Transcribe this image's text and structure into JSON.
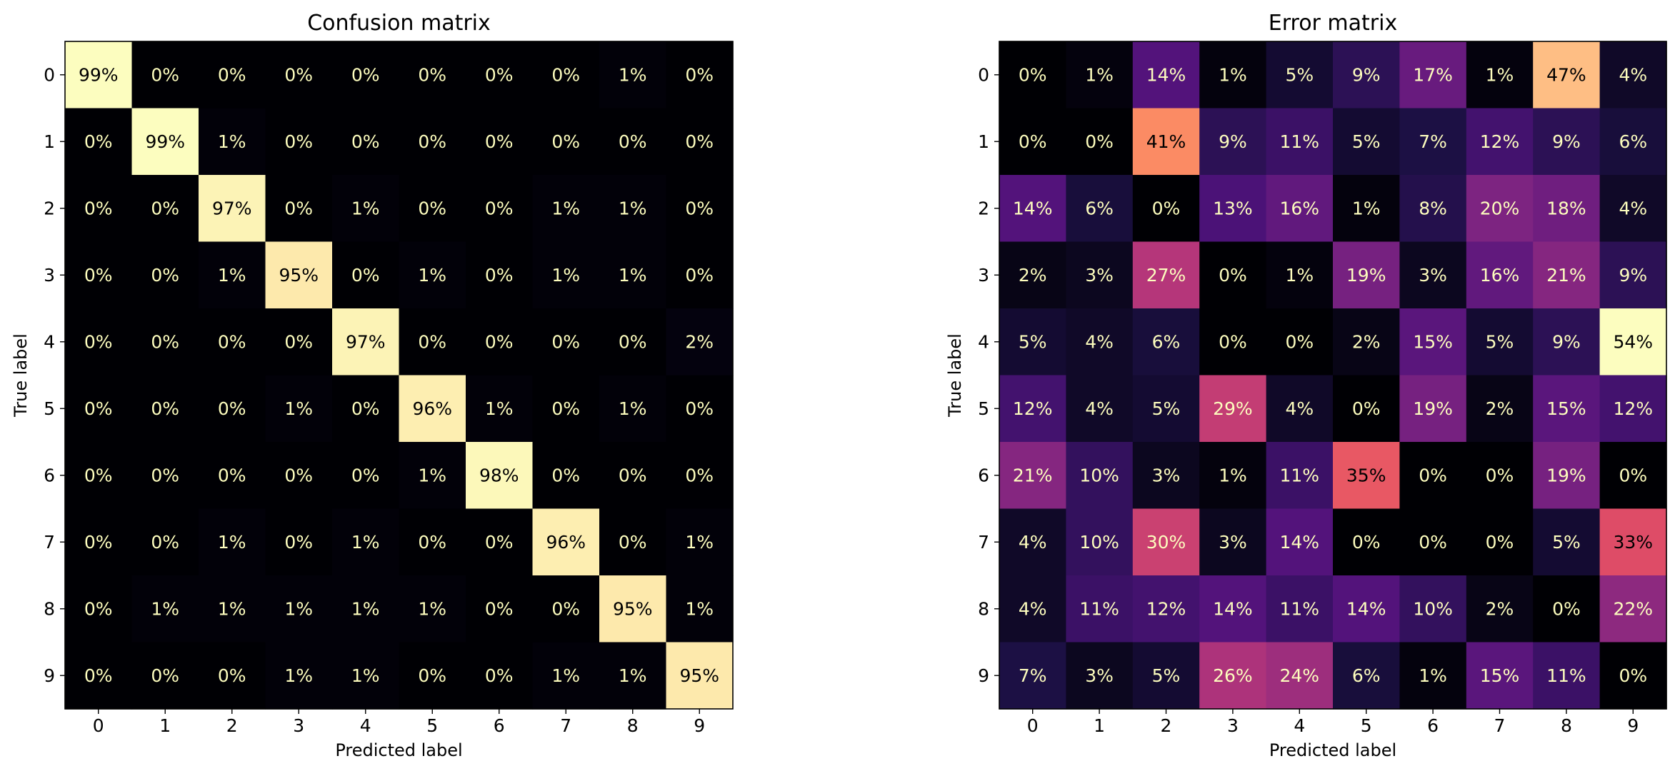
{
  "chart_data": [
    {
      "type": "heatmap",
      "title": "Confusion matrix",
      "xlabel": "Predicted label",
      "ylabel": "True label",
      "x_ticks": [
        "0",
        "1",
        "2",
        "3",
        "4",
        "5",
        "6",
        "7",
        "8",
        "9"
      ],
      "y_ticks": [
        "0",
        "1",
        "2",
        "3",
        "4",
        "5",
        "6",
        "7",
        "8",
        "9"
      ],
      "colormap": "magma",
      "value_format": "percent",
      "values": [
        [
          99,
          0,
          0,
          0,
          0,
          0,
          0,
          0,
          1,
          0
        ],
        [
          0,
          99,
          1,
          0,
          0,
          0,
          0,
          0,
          0,
          0
        ],
        [
          0,
          0,
          97,
          0,
          1,
          0,
          0,
          1,
          1,
          0
        ],
        [
          0,
          0,
          1,
          95,
          0,
          1,
          0,
          1,
          1,
          0
        ],
        [
          0,
          0,
          0,
          0,
          97,
          0,
          0,
          0,
          0,
          2
        ],
        [
          0,
          0,
          0,
          1,
          0,
          96,
          1,
          0,
          1,
          0
        ],
        [
          0,
          0,
          0,
          0,
          0,
          1,
          98,
          0,
          0,
          0
        ],
        [
          0,
          0,
          1,
          0,
          1,
          0,
          0,
          96,
          0,
          1
        ],
        [
          0,
          1,
          1,
          1,
          1,
          1,
          0,
          0,
          95,
          1
        ],
        [
          0,
          0,
          0,
          1,
          1,
          0,
          0,
          1,
          1,
          95
        ]
      ]
    },
    {
      "type": "heatmap",
      "title": "Error matrix",
      "xlabel": "Predicted label",
      "ylabel": "True label",
      "x_ticks": [
        "0",
        "1",
        "2",
        "3",
        "4",
        "5",
        "6",
        "7",
        "8",
        "9"
      ],
      "y_ticks": [
        "0",
        "1",
        "2",
        "3",
        "4",
        "5",
        "6",
        "7",
        "8",
        "9"
      ],
      "colormap": "magma",
      "value_format": "percent",
      "values": [
        [
          0,
          1,
          14,
          1,
          5,
          9,
          17,
          1,
          47,
          4
        ],
        [
          0,
          0,
          41,
          9,
          11,
          5,
          7,
          12,
          9,
          6
        ],
        [
          14,
          6,
          0,
          13,
          16,
          1,
          8,
          20,
          18,
          4
        ],
        [
          2,
          3,
          27,
          0,
          1,
          19,
          3,
          16,
          21,
          9
        ],
        [
          5,
          4,
          6,
          0,
          0,
          2,
          15,
          5,
          9,
          54
        ],
        [
          12,
          4,
          5,
          29,
          4,
          0,
          19,
          2,
          15,
          12
        ],
        [
          21,
          10,
          3,
          1,
          11,
          35,
          0,
          0,
          19,
          0
        ],
        [
          4,
          10,
          30,
          3,
          14,
          0,
          0,
          0,
          5,
          33
        ],
        [
          4,
          11,
          12,
          14,
          11,
          14,
          10,
          2,
          0,
          22
        ],
        [
          7,
          3,
          5,
          26,
          24,
          6,
          1,
          15,
          11,
          0
        ]
      ]
    }
  ]
}
